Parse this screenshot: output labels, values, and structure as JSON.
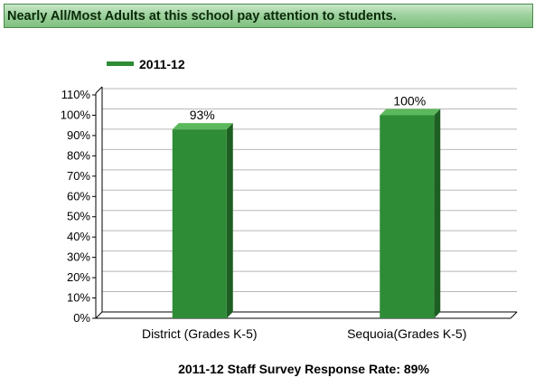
{
  "header": {
    "title": "Nearly All/Most Adults at this school pay attention to students."
  },
  "colors": {
    "bar_front": "#2e8b36",
    "bar_top": "#5cb85c",
    "bar_side": "#1d5e22",
    "title_bg": "#9ed19e"
  },
  "chart_data": {
    "type": "bar",
    "categories": [
      "District (Grades K-5)",
      "Sequoia(Grades K-5)"
    ],
    "series": [
      {
        "name": "2011-12",
        "values": [
          93,
          100
        ]
      }
    ],
    "data_labels": [
      "93%",
      "100%"
    ],
    "ylim": [
      0,
      110
    ],
    "y_ticks": [
      "0%",
      "10%",
      "20%",
      "30%",
      "40%",
      "50%",
      "60%",
      "70%",
      "80%",
      "90%",
      "100%",
      "110%"
    ],
    "grid": true,
    "legend_position": "top-left",
    "footer": "2011-12 Staff Survey Response Rate: 89%"
  }
}
